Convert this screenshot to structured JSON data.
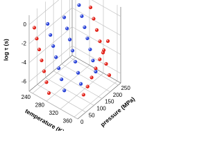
{
  "chart_data": {
    "type": "scatter3d",
    "xlabel": "temperature (K)",
    "ylabel": "pressure (MPa)",
    "zlabel": "log τ (s)",
    "xlim": [
      230,
      370
    ],
    "xticks": [
      240,
      280,
      320,
      360
    ],
    "ylim": [
      0,
      265
    ],
    "yticks": [
      0,
      50,
      100,
      150,
      200,
      250
    ],
    "zlim": [
      -7,
      1
    ],
    "zticks": [
      -6,
      -4,
      -2,
      0
    ],
    "grid": true,
    "series": [
      {
        "color": "#e2231a",
        "x": [
          245,
          252,
          259,
          266,
          273,
          280,
          287,
          290,
          299,
          308,
          317,
          326,
          335,
          344,
          340,
          340,
          340,
          340,
          340,
          340,
          340
        ],
        "y": [
          0,
          0,
          0,
          0,
          0,
          0,
          0,
          250,
          250,
          250,
          250,
          250,
          250,
          250,
          100,
          125,
          150,
          175,
          200,
          225,
          250
        ],
        "z": [
          0,
          -1,
          -2,
          -3,
          -4,
          -5,
          -6,
          -0.5,
          -1.5,
          -2.5,
          -3.5,
          -4.5,
          -5.5,
          -6.5,
          -6.5,
          -6,
          -5.4,
          -4.8,
          -4.2,
          -3.6,
          -3
        ]
      },
      {
        "color": "#2b44d8",
        "x": [
          260,
          268,
          276,
          284,
          292,
          300,
          308,
          275,
          283,
          291,
          299,
          307,
          315,
          323,
          285,
          293,
          301,
          309,
          317,
          325,
          333
        ],
        "y": [
          50,
          50,
          50,
          50,
          50,
          50,
          50,
          120,
          120,
          120,
          120,
          120,
          120,
          120,
          190,
          190,
          190,
          190,
          190,
          190,
          190
        ],
        "z": [
          0,
          -1,
          -2,
          -3,
          -4,
          -5,
          -6,
          0,
          -1,
          -2,
          -3,
          -4,
          -5,
          -6,
          0.5,
          -0.5,
          -1.5,
          -2.5,
          -3.5,
          -4.5,
          -5.5
        ]
      }
    ]
  }
}
